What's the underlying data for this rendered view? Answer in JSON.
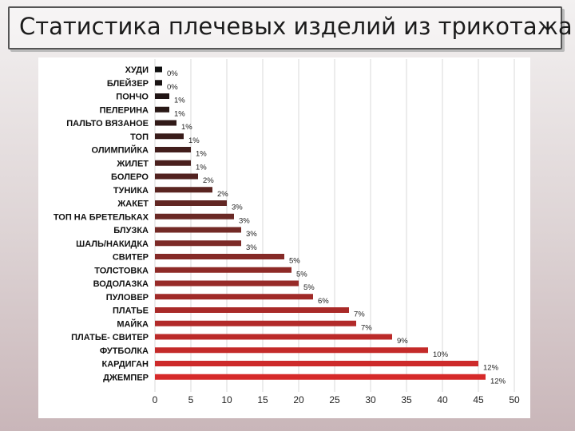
{
  "title": "Статистика плечевых изделий из трикотажа",
  "chart_data": {
    "type": "bar",
    "orientation": "horizontal",
    "categories": [
      "ХУДИ",
      "БЛЕЙЗЕР",
      "ПОНЧО",
      "ПЕЛЕРИНА",
      "ПАЛЬТО ВЯЗАНОЕ",
      "ТОП",
      "ОЛИМПИЙКА",
      "ЖИЛЕТ",
      "БОЛЕРО",
      "ТУНИКА",
      "ЖАКЕТ",
      "ТОП НА БРЕТЕЛЬКАХ",
      "БЛУЗКА",
      "ШАЛЬ/НАКИДКА",
      "СВИТЕР",
      "ТОЛСТОВКА",
      "ВОДОЛАЗКА",
      "ПУЛОВЕР",
      "ПЛАТЬЕ",
      "МАЙКА",
      "ПЛАТЬЕ- СВИТЕР",
      "ФУТБОЛКА",
      "КАРДИГАН",
      "ДЖЕМПЕР"
    ],
    "values": [
      1,
      1,
      2,
      2,
      3,
      4,
      5,
      5,
      6,
      8,
      10,
      11,
      12,
      12,
      18,
      19,
      20,
      22,
      27,
      28,
      33,
      38,
      45,
      46
    ],
    "labels": [
      "0%",
      "0%",
      "1%",
      "1%",
      "1%",
      "1%",
      "1%",
      "1%",
      "2%",
      "2%",
      "3%",
      "3%",
      "3%",
      "3%",
      "5%",
      "5%",
      "5%",
      "6%",
      "7%",
      "7%",
      "9%",
      "10%",
      "12%",
      "12%"
    ],
    "xlim": [
      0,
      50
    ],
    "xticks": [
      "0",
      "5",
      "10",
      "15",
      "20",
      "25",
      "30",
      "35",
      "40",
      "45",
      "50"
    ],
    "grid": true,
    "colors": {
      "start": "#111111",
      "mid": "#6e2a26",
      "end": "#d62a2a"
    }
  }
}
